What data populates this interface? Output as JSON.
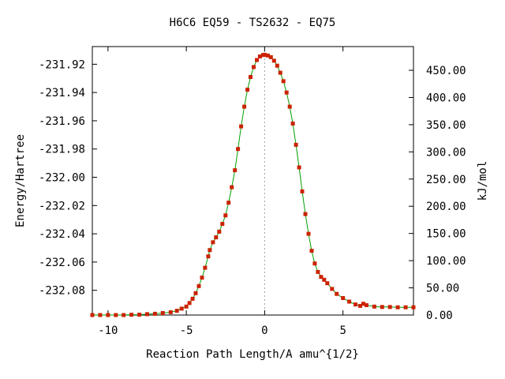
{
  "chart_data": {
    "type": "line",
    "title": "H6C6   EQ59 - TS2632 - EQ75",
    "xlabel": "Reaction Path Length/A amu^{1/2}",
    "ylabel": "Energy/Hartree",
    "y2label": "kJ/mol",
    "xlim": [
      -11.0,
      9.5
    ],
    "ylim": [
      -232.0975,
      -231.9075
    ],
    "y2lim": [
      0.0,
      493.6
    ],
    "x_ticks": [
      -10,
      -5,
      0,
      5
    ],
    "x_tick_labels": [
      "-10",
      "-5",
      "0",
      "5"
    ],
    "y_ticks": [
      -231.92,
      -231.94,
      -231.96,
      -231.98,
      -232.0,
      -232.02,
      -232.04,
      -232.06,
      -232.08
    ],
    "y_tick_labels": [
      "-231.92",
      "-231.94",
      "-231.96",
      "-231.98",
      "-232.00",
      "-232.02",
      "-232.04",
      "-232.06",
      "-232.08"
    ],
    "y2_ticks": [
      0,
      50,
      100,
      150,
      200,
      250,
      300,
      350,
      400,
      450
    ],
    "y2_tick_labels": [
      "0.00",
      "50.00",
      "100.00",
      "150.00",
      "200.00",
      "250.00",
      "300.00",
      "350.00",
      "400.00",
      "450.00"
    ],
    "grid": false,
    "vline_x": 0,
    "line_color": "#00a000",
    "marker_color": "#cc2200",
    "series": [
      {
        "points": [
          [
            -11.0,
            -232.0975
          ],
          [
            -10.5,
            -232.0975
          ],
          [
            -10.0,
            -232.0975
          ],
          [
            -9.5,
            -232.0975
          ],
          [
            -9.0,
            -232.0975
          ],
          [
            -8.5,
            -232.0973
          ],
          [
            -8.0,
            -232.0972
          ],
          [
            -7.5,
            -232.0969
          ],
          [
            -7.0,
            -232.0966
          ],
          [
            -6.5,
            -232.0961
          ],
          [
            -6.0,
            -232.0955
          ],
          [
            -5.6,
            -232.0945
          ],
          [
            -5.3,
            -232.093
          ],
          [
            -5.0,
            -232.0915
          ],
          [
            -4.8,
            -232.089
          ],
          [
            -4.6,
            -232.086
          ],
          [
            -4.4,
            -232.082
          ],
          [
            -4.2,
            -232.077
          ],
          [
            -4.0,
            -232.071
          ],
          [
            -3.8,
            -232.064
          ],
          [
            -3.6,
            -232.056
          ],
          [
            -3.5,
            -232.0515
          ],
          [
            -3.3,
            -232.046
          ],
          [
            -3.1,
            -232.0425
          ],
          [
            -2.9,
            -232.0385
          ],
          [
            -2.7,
            -232.033
          ],
          [
            -2.5,
            -232.027
          ],
          [
            -2.3,
            -232.018
          ],
          [
            -2.1,
            -232.007
          ],
          [
            -1.9,
            -231.995
          ],
          [
            -1.7,
            -231.98
          ],
          [
            -1.5,
            -231.964
          ],
          [
            -1.3,
            -231.95
          ],
          [
            -1.1,
            -231.938
          ],
          [
            -0.9,
            -231.929
          ],
          [
            -0.7,
            -231.922
          ],
          [
            -0.5,
            -231.917
          ],
          [
            -0.3,
            -231.9145
          ],
          [
            -0.1,
            -231.9135
          ],
          [
            0.0,
            -231.9133
          ],
          [
            0.2,
            -231.9138
          ],
          [
            0.4,
            -231.915
          ],
          [
            0.6,
            -231.9175
          ],
          [
            0.8,
            -231.921
          ],
          [
            1.0,
            -231.926
          ],
          [
            1.2,
            -231.932
          ],
          [
            1.4,
            -231.94
          ],
          [
            1.6,
            -231.95
          ],
          [
            1.8,
            -231.962
          ],
          [
            2.0,
            -231.977
          ],
          [
            2.2,
            -231.993
          ],
          [
            2.4,
            -232.01
          ],
          [
            2.6,
            -232.026
          ],
          [
            2.8,
            -232.04
          ],
          [
            3.0,
            -232.052
          ],
          [
            3.2,
            -232.061
          ],
          [
            3.4,
            -232.067
          ],
          [
            3.6,
            -232.0705
          ],
          [
            3.8,
            -232.0725
          ],
          [
            4.0,
            -232.075
          ],
          [
            4.3,
            -232.079
          ],
          [
            4.6,
            -232.0825
          ],
          [
            5.0,
            -232.0855
          ],
          [
            5.4,
            -232.088
          ],
          [
            5.8,
            -232.09
          ],
          [
            6.1,
            -232.091
          ],
          [
            6.3,
            -232.0895
          ],
          [
            6.5,
            -232.0905
          ],
          [
            7.0,
            -232.0915
          ],
          [
            7.5,
            -232.0918
          ],
          [
            8.0,
            -232.0918
          ],
          [
            8.5,
            -232.092
          ],
          [
            9.0,
            -232.092
          ],
          [
            9.5,
            -232.092
          ]
        ]
      }
    ]
  }
}
